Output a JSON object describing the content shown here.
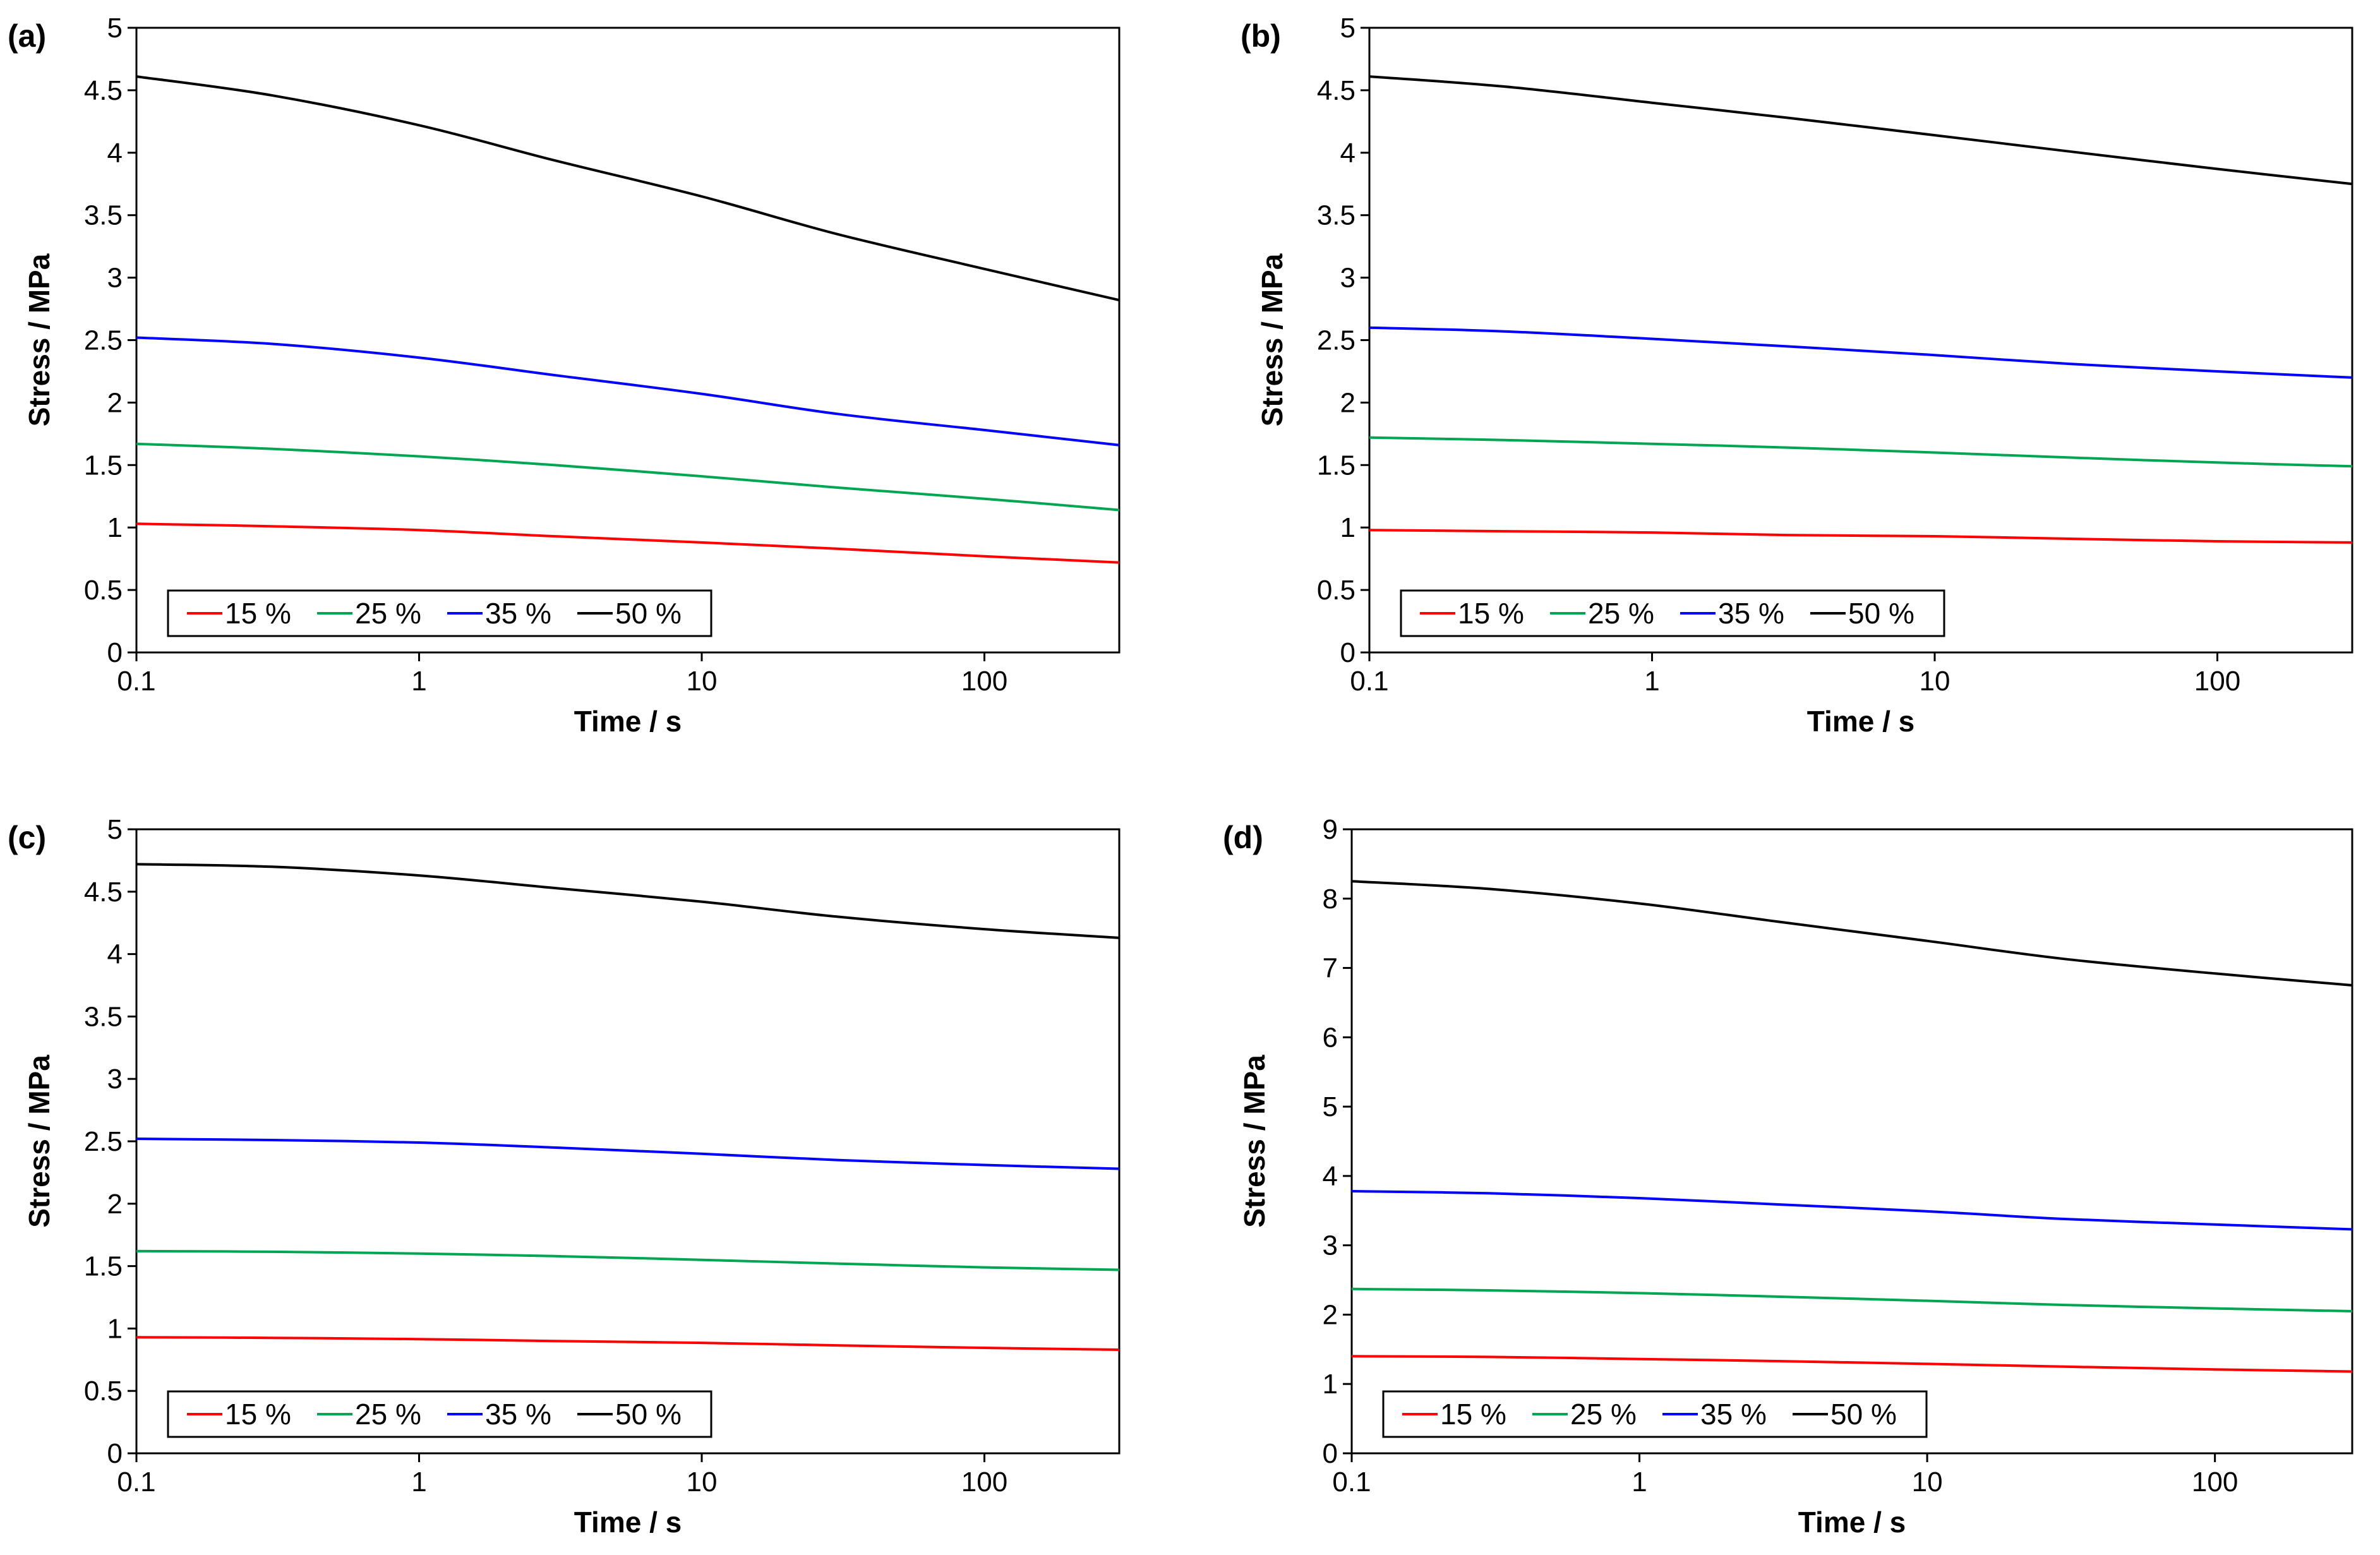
{
  "chart_data": [
    {
      "type": "line",
      "panel_label": "(a)",
      "xlabel": "Time / s",
      "ylabel": "Stress / MPa",
      "xscale": "log",
      "xlim": [
        0.1,
        300
      ],
      "ylim": [
        0,
        5
      ],
      "xticks": [
        0.1,
        1,
        10,
        100
      ],
      "xtick_labels": [
        "0.1",
        "1",
        "10",
        "100"
      ],
      "yticks": [
        0,
        0.5,
        1,
        1.5,
        2,
        2.5,
        3,
        3.5,
        4,
        4.5,
        5
      ],
      "ytick_labels": [
        "0",
        "0.5",
        "1",
        "1.5",
        "2",
        "2.5",
        "3",
        "3.5",
        "4",
        "4.5",
        "5"
      ],
      "legend_position": "bottom-left",
      "x": [
        0.1,
        0.3,
        1,
        3,
        10,
        30,
        100,
        300
      ],
      "series": [
        {
          "name": "15 %",
          "color": "#ff0000",
          "values": [
            1.03,
            1.01,
            0.98,
            0.93,
            0.88,
            0.83,
            0.77,
            0.72
          ]
        },
        {
          "name": "25 %",
          "color": "#00a651",
          "values": [
            1.67,
            1.63,
            1.57,
            1.5,
            1.41,
            1.32,
            1.23,
            1.14
          ]
        },
        {
          "name": "35 %",
          "color": "#0000ff",
          "values": [
            2.52,
            2.47,
            2.36,
            2.22,
            2.07,
            1.91,
            1.78,
            1.66
          ]
        },
        {
          "name": "50 %",
          "color": "#000000",
          "values": [
            4.61,
            4.46,
            4.22,
            3.94,
            3.65,
            3.35,
            3.07,
            2.82
          ]
        }
      ]
    },
    {
      "type": "line",
      "panel_label": "(b)",
      "xlabel": "Time / s",
      "ylabel": "Stress / MPa",
      "xscale": "log",
      "xlim": [
        0.1,
        300
      ],
      "ylim": [
        0,
        5
      ],
      "xticks": [
        0.1,
        1,
        10,
        100
      ],
      "xtick_labels": [
        "0.1",
        "1",
        "10",
        "100"
      ],
      "yticks": [
        0,
        0.5,
        1,
        1.5,
        2,
        2.5,
        3,
        3.5,
        4,
        4.5,
        5
      ],
      "ytick_labels": [
        "0",
        "0.5",
        "1",
        "1.5",
        "2",
        "2.5",
        "3",
        "3.5",
        "4",
        "4.5",
        "5"
      ],
      "legend_position": "bottom-left",
      "x": [
        0.1,
        0.3,
        1,
        3,
        10,
        30,
        100,
        300
      ],
      "series": [
        {
          "name": "15 %",
          "color": "#ff0000",
          "values": [
            0.98,
            0.97,
            0.96,
            0.94,
            0.93,
            0.91,
            0.89,
            0.88
          ]
        },
        {
          "name": "25 %",
          "color": "#00a651",
          "values": [
            1.72,
            1.7,
            1.67,
            1.64,
            1.6,
            1.56,
            1.52,
            1.49
          ]
        },
        {
          "name": "35 %",
          "color": "#0000ff",
          "values": [
            2.6,
            2.57,
            2.51,
            2.45,
            2.38,
            2.31,
            2.25,
            2.2
          ]
        },
        {
          "name": "50 %",
          "color": "#000000",
          "values": [
            4.61,
            4.53,
            4.4,
            4.28,
            4.14,
            4.01,
            3.87,
            3.75
          ]
        }
      ]
    },
    {
      "type": "line",
      "panel_label": "(c)",
      "xlabel": "Time / s",
      "ylabel": "Stress / MPa",
      "xscale": "log",
      "xlim": [
        0.1,
        300
      ],
      "ylim": [
        0,
        5
      ],
      "xticks": [
        0.1,
        1,
        10,
        100
      ],
      "xtick_labels": [
        "0.1",
        "1",
        "10",
        "100"
      ],
      "yticks": [
        0,
        0.5,
        1,
        1.5,
        2,
        2.5,
        3,
        3.5,
        4,
        4.5,
        5
      ],
      "ytick_labels": [
        "0",
        "0.5",
        "1",
        "1.5",
        "2",
        "2.5",
        "3",
        "3.5",
        "4",
        "4.5",
        "5"
      ],
      "legend_position": "bottom-left",
      "x": [
        0.1,
        0.3,
        1,
        3,
        10,
        30,
        100,
        300
      ],
      "series": [
        {
          "name": "15 %",
          "color": "#ff0000",
          "values": [
            0.93,
            0.925,
            0.915,
            0.9,
            0.885,
            0.865,
            0.845,
            0.83
          ]
        },
        {
          "name": "25 %",
          "color": "#00a651",
          "values": [
            1.62,
            1.615,
            1.6,
            1.58,
            1.55,
            1.52,
            1.49,
            1.47
          ]
        },
        {
          "name": "35 %",
          "color": "#0000ff",
          "values": [
            2.52,
            2.51,
            2.49,
            2.45,
            2.4,
            2.35,
            2.31,
            2.28
          ]
        },
        {
          "name": "50 %",
          "color": "#000000",
          "values": [
            4.72,
            4.7,
            4.63,
            4.53,
            4.42,
            4.3,
            4.2,
            4.13
          ]
        }
      ]
    },
    {
      "type": "line",
      "panel_label": "(d)",
      "xlabel": "Time / s",
      "ylabel": "Stress / MPa",
      "xscale": "log",
      "xlim": [
        0.1,
        300
      ],
      "ylim": [
        0,
        9
      ],
      "xticks": [
        0.1,
        1,
        10,
        100
      ],
      "xtick_labels": [
        "0.1",
        "1",
        "10",
        "100"
      ],
      "yticks": [
        0,
        1,
        2,
        3,
        4,
        5,
        6,
        7,
        8,
        9
      ],
      "ytick_labels": [
        "0",
        "1",
        "2",
        "3",
        "4",
        "5",
        "6",
        "7",
        "8",
        "9"
      ],
      "legend_position": "bottom-left",
      "x": [
        0.1,
        0.3,
        1,
        3,
        10,
        30,
        100,
        300
      ],
      "series": [
        {
          "name": "15 %",
          "color": "#ff0000",
          "values": [
            1.4,
            1.39,
            1.36,
            1.33,
            1.29,
            1.25,
            1.21,
            1.18
          ]
        },
        {
          "name": "25 %",
          "color": "#00a651",
          "values": [
            2.37,
            2.35,
            2.31,
            2.26,
            2.2,
            2.14,
            2.09,
            2.05
          ]
        },
        {
          "name": "35 %",
          "color": "#0000ff",
          "values": [
            3.78,
            3.75,
            3.68,
            3.59,
            3.49,
            3.38,
            3.3,
            3.23
          ]
        },
        {
          "name": "50 %",
          "color": "#000000",
          "values": [
            8.25,
            8.14,
            7.93,
            7.67,
            7.39,
            7.13,
            6.92,
            6.75
          ]
        }
      ]
    }
  ]
}
